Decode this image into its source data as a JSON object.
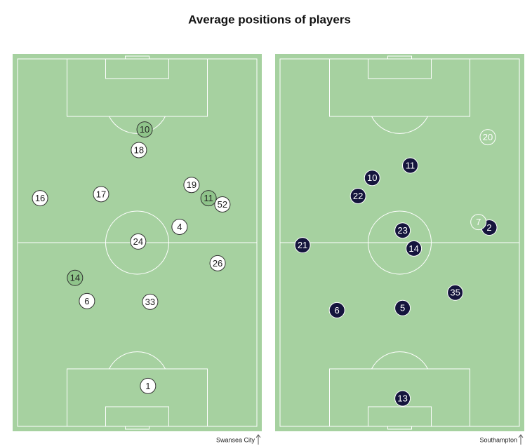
{
  "title": "Average positions of players",
  "chart_data": [
    {
      "type": "scatter",
      "team": "Swansea City",
      "xlim": [
        0,
        100
      ],
      "ylim": [
        0,
        100
      ],
      "pitch_color": "#a6d1a0",
      "series": [
        {
          "color": "#ffffff",
          "edge_color": "#333333",
          "text_color": "#222222",
          "labels": [
            "18",
            "16",
            "17",
            "19",
            "52",
            "4",
            "24",
            "26",
            "6",
            "33",
            "1"
          ],
          "x": [
            50.7,
            9.4,
            34.9,
            72.7,
            85.6,
            67.7,
            50.4,
            83.6,
            29.0,
            55.4,
            54.5
          ],
          "values": [
            75.2,
            62.1,
            63.2,
            65.7,
            60.4,
            54.3,
            50.3,
            44.4,
            34.1,
            33.9,
            11.0
          ]
        },
        {
          "color": "#8fc48a",
          "edge_color": "#333333",
          "text_color": "#222222",
          "labels": [
            "10",
            "11",
            "14"
          ],
          "x": [
            53.1,
            79.8,
            24.0
          ],
          "values": [
            80.8,
            62.1,
            40.4
          ]
        }
      ]
    },
    {
      "type": "scatter",
      "team": "Southampton",
      "xlim": [
        0,
        100
      ],
      "ylim": [
        0,
        100
      ],
      "pitch_color": "#a6d1a0",
      "series": [
        {
          "color": "#15153d",
          "edge_color": "#ffffff",
          "text_color": "#ffffff",
          "labels": [
            "11",
            "10",
            "22",
            "23",
            "2",
            "21",
            "14",
            "35",
            "6",
            "5",
            "13"
          ],
          "x": [
            54.4,
            38.5,
            32.6,
            51.2,
            87.4,
            9.4,
            55.9,
            73.2,
            23.8,
            51.2,
            51.2
          ],
          "values": [
            71.0,
            67.6,
            62.7,
            53.3,
            54.1,
            49.3,
            48.4,
            36.4,
            31.6,
            32.2,
            7.6
          ]
        },
        {
          "color": "#a6d1a0",
          "edge_color": "#ffffff",
          "text_color": "#ffffff",
          "labels": [
            "20",
            "7"
          ],
          "x": [
            86.8,
            82.9
          ],
          "values": [
            78.7,
            55.6
          ]
        }
      ]
    }
  ]
}
